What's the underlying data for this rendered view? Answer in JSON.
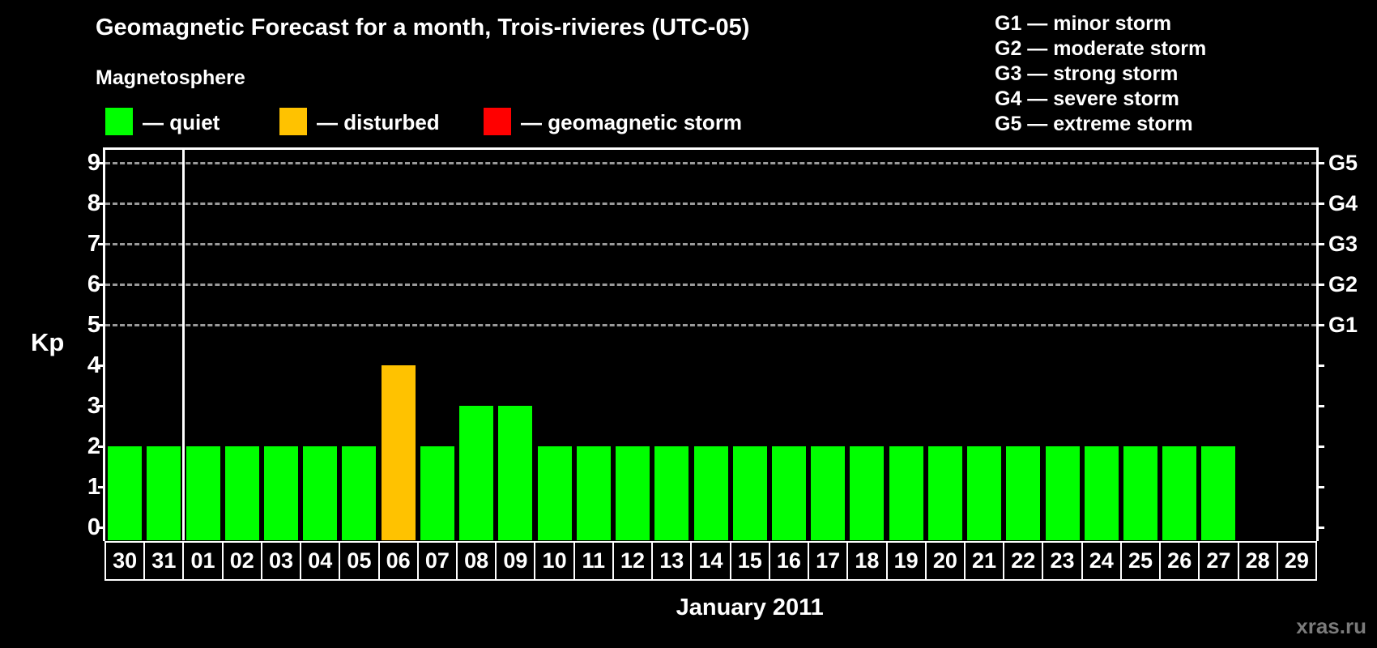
{
  "title": "Geomagnetic Forecast for a month, Trois-rivieres (UTC-05)",
  "subtitle": "Magnetosphere",
  "legend": {
    "items": [
      {
        "name": "quiet",
        "label": "— quiet",
        "color": "#00ff00"
      },
      {
        "name": "disturbed",
        "label": "— disturbed",
        "color": "#ffc200"
      },
      {
        "name": "storm",
        "label": "— geomagnetic storm",
        "color": "#ff0000"
      }
    ]
  },
  "storm_scale_legend": [
    "G1 — minor storm",
    "G2 — moderate storm",
    "G3 — strong storm",
    "G4 — severe storm",
    "G5 — extreme storm"
  ],
  "watermark": "xras.ru",
  "chart_data": {
    "type": "bar",
    "title": "Geomagnetic Forecast for a month, Trois-rivieres (UTC-05)",
    "xlabel": "January 2011",
    "ylabel": "Kp",
    "ylim": [
      0,
      9
    ],
    "yticks": [
      0,
      1,
      2,
      3,
      4,
      5,
      6,
      7,
      8,
      9
    ],
    "gridlines_kp": [
      5,
      6,
      7,
      8,
      9
    ],
    "right_axis_labels": [
      {
        "label": "G1",
        "kp": 5
      },
      {
        "label": "G2",
        "kp": 6
      },
      {
        "label": "G3",
        "kp": 7
      },
      {
        "label": "G4",
        "kp": 8
      },
      {
        "label": "G5",
        "kp": 9
      }
    ],
    "categories": [
      "30",
      "31",
      "01",
      "02",
      "03",
      "04",
      "05",
      "06",
      "07",
      "08",
      "09",
      "10",
      "11",
      "12",
      "13",
      "14",
      "15",
      "16",
      "17",
      "18",
      "19",
      "20",
      "21",
      "22",
      "23",
      "24",
      "25",
      "26",
      "27",
      "28",
      "29"
    ],
    "values": [
      2,
      2,
      2,
      2,
      2,
      2,
      2,
      4,
      2,
      3,
      3,
      2,
      2,
      2,
      2,
      2,
      2,
      2,
      2,
      2,
      2,
      2,
      2,
      2,
      2,
      2,
      2,
      2,
      2,
      0,
      0
    ],
    "month_separator_after_index": 1,
    "colors_by_level": {
      "quiet": "#00ff00",
      "disturbed": "#ffc200",
      "storm": "#ff0000"
    },
    "color_rule": {
      "disturbed_min_kp": 4,
      "storm_min_kp": 5
    },
    "legend_position": "top-left",
    "grid": "dashed horizontal at G-storm levels only"
  }
}
